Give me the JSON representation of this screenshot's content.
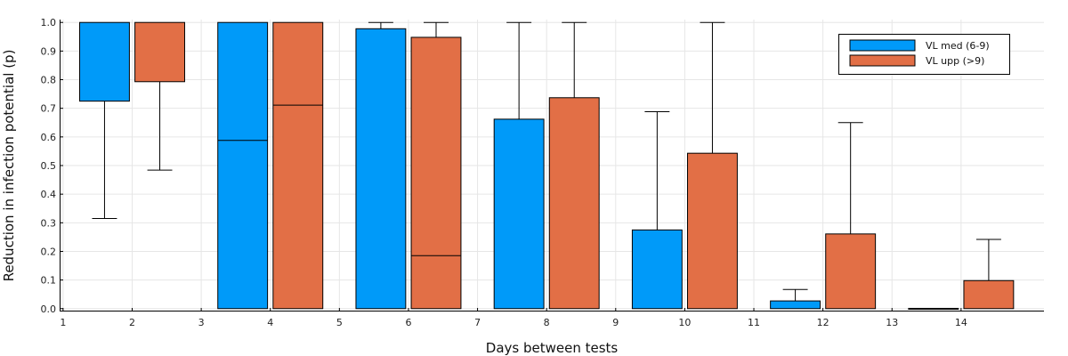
{
  "chart_data": {
    "type": "boxplot",
    "xlabel": "Days between tests",
    "ylabel": "Reduction in infection potential (p)",
    "xlim": [
      0.95,
      15.2
    ],
    "ylim": [
      -0.01,
      1.01
    ],
    "xticks": [
      1,
      2,
      3,
      4,
      5,
      6,
      7,
      8,
      9,
      10,
      11,
      12,
      13,
      14
    ],
    "yticks": [
      0.0,
      0.1,
      0.2,
      0.3,
      0.4,
      0.5,
      0.6,
      0.7,
      0.8,
      0.9,
      1.0
    ],
    "ytick_labels": [
      "0.0",
      "0.1",
      "0.2",
      "0.3",
      "0.4",
      "0.5",
      "0.6",
      "0.7",
      "0.8",
      "0.9",
      "1.0"
    ],
    "grid": true,
    "legend_position": "top-right",
    "series": [
      {
        "name": "VL med (6-9)",
        "color": "#009AF9",
        "boxes": [
          {
            "x_center": 1.6,
            "whisker_low": 0.315,
            "q1": 0.725,
            "median": 1.0,
            "q3": 1.0,
            "whisker_high": 1.0
          },
          {
            "x_center": 3.6,
            "whisker_low": 0.0,
            "q1": 0.0,
            "median": 0.588,
            "q3": 1.0,
            "whisker_high": 1.0
          },
          {
            "x_center": 5.6,
            "whisker_low": 0.0,
            "q1": 0.0,
            "median": 0.0,
            "q3": 0.978,
            "whisker_high": 1.0
          },
          {
            "x_center": 7.6,
            "whisker_low": 0.0,
            "q1": 0.0,
            "median": 0.0,
            "q3": 0.662,
            "whisker_high": 1.0
          },
          {
            "x_center": 9.6,
            "whisker_low": 0.0,
            "q1": 0.0,
            "median": 0.0,
            "q3": 0.275,
            "whisker_high": 0.688
          },
          {
            "x_center": 11.6,
            "whisker_low": 0.0,
            "q1": 0.0,
            "median": 0.0,
            "q3": 0.027,
            "whisker_high": 0.067
          },
          {
            "x_center": 13.6,
            "whisker_low": 0.0,
            "q1": 0.0,
            "median": 0.0,
            "q3": 0.001,
            "whisker_high": 0.001
          }
        ]
      },
      {
        "name": "VL upp (>9)",
        "color": "#E26F46",
        "boxes": [
          {
            "x_center": 2.4,
            "whisker_low": 0.484,
            "q1": 0.793,
            "median": 1.0,
            "q3": 1.0,
            "whisker_high": 1.0
          },
          {
            "x_center": 4.4,
            "whisker_low": 0.0,
            "q1": 0.0,
            "median": 0.711,
            "q3": 1.0,
            "whisker_high": 1.0
          },
          {
            "x_center": 6.4,
            "whisker_low": 0.0,
            "q1": 0.0,
            "median": 0.185,
            "q3": 0.948,
            "whisker_high": 1.0
          },
          {
            "x_center": 8.4,
            "whisker_low": 0.0,
            "q1": 0.0,
            "median": 0.0,
            "q3": 0.737,
            "whisker_high": 1.0
          },
          {
            "x_center": 10.4,
            "whisker_low": 0.0,
            "q1": 0.0,
            "median": 0.0,
            "q3": 0.543,
            "whisker_high": 1.0
          },
          {
            "x_center": 12.4,
            "whisker_low": 0.0,
            "q1": 0.0,
            "median": 0.0,
            "q3": 0.261,
            "whisker_high": 0.65
          },
          {
            "x_center": 14.4,
            "whisker_low": 0.0,
            "q1": 0.0,
            "median": 0.0,
            "q3": 0.098,
            "whisker_high": 0.242
          }
        ]
      }
    ]
  }
}
